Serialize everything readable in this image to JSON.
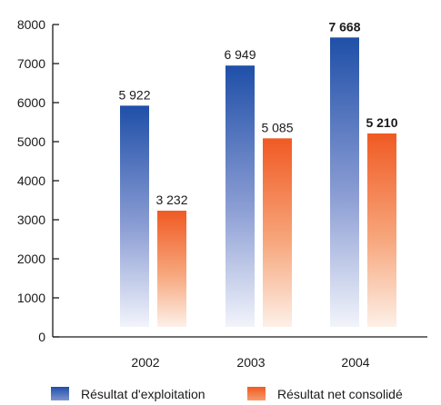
{
  "chart_data": {
    "type": "bar",
    "categories": [
      "2002",
      "2003",
      "2004"
    ],
    "series": [
      {
        "name": "Résultat d'exploitation",
        "values": [
          5922,
          6949,
          7668
        ],
        "labels": [
          "5 922",
          "6 949",
          "7 668"
        ],
        "bold": [
          false,
          false,
          true
        ],
        "color": "#1f4fa8"
      },
      {
        "name": "Résultat net consolidé",
        "values": [
          3232,
          5085,
          5210
        ],
        "labels": [
          "3 232",
          "5 085",
          "5 210"
        ],
        "bold": [
          false,
          false,
          true
        ],
        "color": "#f05a23"
      }
    ],
    "ylim": [
      0,
      8000
    ],
    "yticks": [
      0,
      1000,
      2000,
      3000,
      4000,
      5000,
      6000,
      7000,
      8000
    ],
    "grid": false,
    "legend_position": "bottom",
    "title": "",
    "xlabel": "",
    "ylabel": ""
  }
}
